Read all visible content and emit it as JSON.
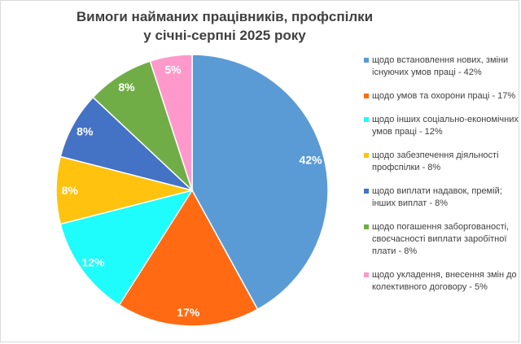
{
  "chart_data": {
    "type": "pie",
    "title_line1": "Вимоги найманих працівників, профспілки",
    "title_line2": "у січні-серпні 2025 року",
    "legend_position": "right",
    "slices": [
      {
        "label": "щодо встановлення нових, зміни існуючих умов праці - 42%",
        "value": 42,
        "data_label": "42%",
        "color": "#5b9bd5"
      },
      {
        "label": "щодо умов та охорони праці - 17%",
        "value": 17,
        "data_label": "17%",
        "color": "#ff6a13"
      },
      {
        "label": "щодо інших соціально-економічних умов праці - 12%",
        "value": 12,
        "data_label": "12%",
        "color": "#1efcfc"
      },
      {
        "label": "щодо забезпечення діяльності профспілки - 8%",
        "value": 8,
        "data_label": "8%",
        "color": "#ffc20e"
      },
      {
        "label": "щодо виплати надавок, премій; інших виплат - 8%",
        "value": 8,
        "data_label": "8%",
        "color": "#4472c4"
      },
      {
        "label": "щодо погашення заборгованості, своєчасності виплати заробітної плати - 8%",
        "value": 8,
        "data_label": "8%",
        "color": "#70ad47"
      },
      {
        "label": "щодо укладення, внесення змін до колективного договору - 5%",
        "value": 5,
        "data_label": "5%",
        "color": "#ff99cc"
      }
    ]
  }
}
